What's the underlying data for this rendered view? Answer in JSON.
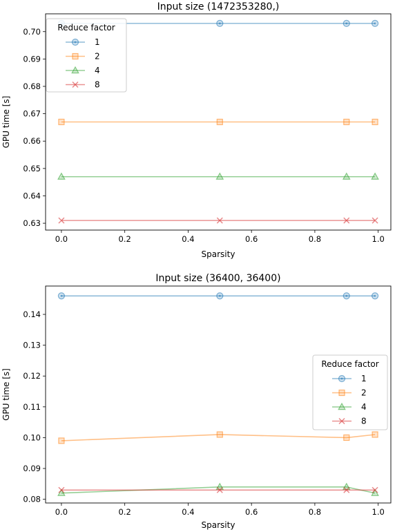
{
  "chart_data": [
    {
      "type": "line",
      "title": "Input size (1472353280,)",
      "xlabel": "Sparsity",
      "ylabel": "GPU time [s]",
      "x": [
        0.0,
        0.5,
        0.9,
        0.99
      ],
      "xlim": [
        -0.05,
        1.04
      ],
      "ylim": [
        0.6275,
        0.7065
      ],
      "xticks": [
        0.0,
        0.2,
        0.4,
        0.6,
        0.8,
        1.0
      ],
      "xtick_labels": [
        "0.0",
        "0.2",
        "0.4",
        "0.6",
        "0.8",
        "1.0"
      ],
      "yticks": [
        0.63,
        0.64,
        0.65,
        0.66,
        0.67,
        0.68,
        0.69,
        0.7
      ],
      "ytick_labels": [
        "0.63",
        "0.64",
        "0.65",
        "0.66",
        "0.67",
        "0.68",
        "0.69",
        "0.70"
      ],
      "grid": false,
      "legend": {
        "title": "Reduce factor",
        "placement": "top-left"
      },
      "series": [
        {
          "name": "1",
          "marker": "circle",
          "color": "#1f77b4",
          "values": [
            0.703,
            0.703,
            0.703,
            0.703
          ]
        },
        {
          "name": "2",
          "marker": "square",
          "color": "#ff7f0e",
          "values": [
            0.667,
            0.667,
            0.667,
            0.667
          ]
        },
        {
          "name": "4",
          "marker": "triangle",
          "color": "#2ca02c",
          "values": [
            0.647,
            0.647,
            0.647,
            0.647
          ]
        },
        {
          "name": "8",
          "marker": "x",
          "color": "#d62728",
          "values": [
            0.631,
            0.631,
            0.631,
            0.631
          ]
        }
      ]
    },
    {
      "type": "line",
      "title": "Input size (36400, 36400)",
      "xlabel": "Sparsity",
      "ylabel": "GPU time [s]",
      "x": [
        0.0,
        0.5,
        0.9,
        0.99
      ],
      "xlim": [
        -0.05,
        1.04
      ],
      "ylim": [
        0.0788,
        0.1492
      ],
      "xticks": [
        0.0,
        0.2,
        0.4,
        0.6,
        0.8,
        1.0
      ],
      "xtick_labels": [
        "0.0",
        "0.2",
        "0.4",
        "0.6",
        "0.8",
        "1.0"
      ],
      "yticks": [
        0.08,
        0.09,
        0.1,
        0.11,
        0.12,
        0.13,
        0.14
      ],
      "ytick_labels": [
        "0.08",
        "0.09",
        "0.10",
        "0.11",
        "0.12",
        "0.13",
        "0.14"
      ],
      "grid": false,
      "legend": {
        "title": "Reduce factor",
        "placement": "center-right"
      },
      "series": [
        {
          "name": "1",
          "marker": "circle",
          "color": "#1f77b4",
          "values": [
            0.146,
            0.146,
            0.146,
            0.146
          ]
        },
        {
          "name": "2",
          "marker": "square",
          "color": "#ff7f0e",
          "values": [
            0.099,
            0.101,
            0.1,
            0.101
          ]
        },
        {
          "name": "4",
          "marker": "triangle",
          "color": "#2ca02c",
          "values": [
            0.082,
            0.084,
            0.084,
            0.082
          ]
        },
        {
          "name": "8",
          "marker": "x",
          "color": "#d62728",
          "values": [
            0.083,
            0.083,
            0.083,
            0.083
          ]
        }
      ]
    }
  ]
}
